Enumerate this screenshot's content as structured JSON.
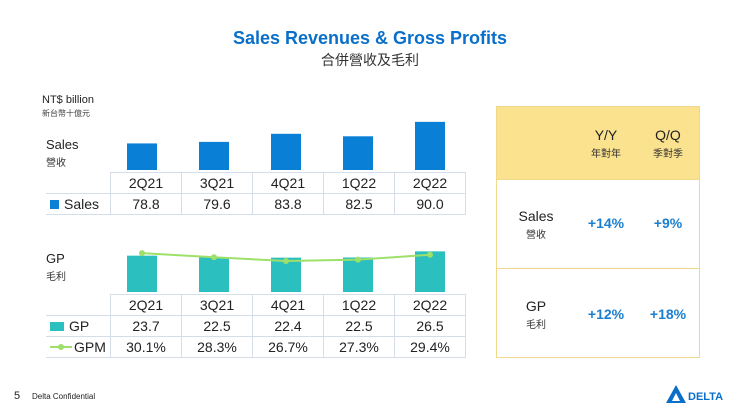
{
  "title": "Sales Revenues & Gross Profits",
  "subtitle": "合併營收及毛利",
  "unit": {
    "en": "NT$ billion",
    "zh": "新台幣十億元"
  },
  "colors": {
    "sales": "#0a7fd6",
    "gp": "#2bbfbf",
    "gpm": "#9ee06a",
    "accent": "#1a7fd0",
    "header_fill": "#fbe28e"
  },
  "chart_data": [
    {
      "type": "bar",
      "label": {
        "en": "Sales",
        "zh": "營收"
      },
      "categories": [
        "2Q21",
        "3Q21",
        "4Q21",
        "1Q22",
        "2Q22"
      ],
      "series": [
        {
          "name": "Sales",
          "values": [
            78.8,
            79.6,
            83.8,
            82.5,
            90.0
          ],
          "labels": [
            "78.8",
            "79.6",
            "83.8",
            "82.5",
            "90.0"
          ]
        }
      ],
      "ylim": [
        65,
        92
      ]
    },
    {
      "type": "bar",
      "label": {
        "en": "GP",
        "zh": "毛利"
      },
      "categories": [
        "2Q21",
        "3Q21",
        "4Q21",
        "1Q22",
        "2Q22"
      ],
      "series": [
        {
          "name": "GP",
          "type": "bar",
          "values": [
            23.7,
            22.5,
            22.4,
            22.5,
            26.5
          ],
          "labels": [
            "23.7",
            "22.5",
            "22.4",
            "22.5",
            "26.5"
          ]
        },
        {
          "name": "GPM",
          "type": "line",
          "unit": "%",
          "values": [
            30.1,
            28.3,
            26.7,
            27.3,
            29.4
          ],
          "labels": [
            "30.1%",
            "28.3%",
            "26.7%",
            "27.3%",
            "29.4%"
          ]
        }
      ],
      "ylim": [
        0,
        30
      ],
      "y2lim": [
        10,
        40
      ]
    }
  ],
  "growth_table": {
    "headers": [
      {
        "en": "Y/Y",
        "zh": "年對年"
      },
      {
        "en": "Q/Q",
        "zh": "季對季"
      }
    ],
    "rows": [
      {
        "en": "Sales",
        "zh": "營收",
        "yoy": "+14%",
        "qoq": "+9%"
      },
      {
        "en": "GP",
        "zh": "毛利",
        "yoy": "+12%",
        "qoq": "+18%"
      }
    ]
  },
  "footer": {
    "page": "5",
    "confidential": "Delta Confidential",
    "logo_text": "DELTA"
  }
}
